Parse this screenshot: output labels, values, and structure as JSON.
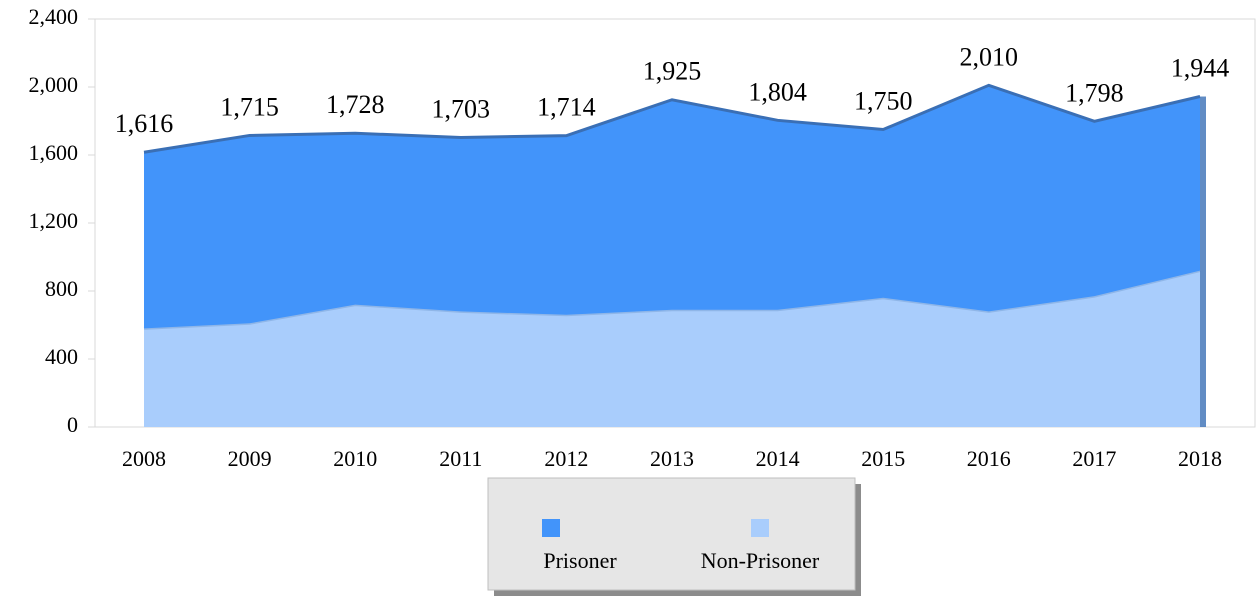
{
  "chart_data": {
    "type": "stacked_area",
    "categories": [
      "2008",
      "2009",
      "2010",
      "2011",
      "2012",
      "2013",
      "2014",
      "2015",
      "2016",
      "2017",
      "2018"
    ],
    "series": [
      {
        "name": "Non-Prisoner",
        "color": "#a9cdfc",
        "values": [
          580,
          610,
          720,
          680,
          660,
          690,
          690,
          760,
          680,
          770,
          920
        ]
      },
      {
        "name": "Prisoner",
        "color": "#4294fa",
        "values": [
          1036,
          1105,
          1008,
          1023,
          1054,
          1235,
          1114,
          990,
          1330,
          1028,
          1024
        ]
      }
    ],
    "totals": [
      1616,
      1715,
      1728,
      1703,
      1714,
      1925,
      1804,
      1750,
      2010,
      1798,
      1944
    ],
    "total_labels": [
      "1,616",
      "1,715",
      "1,728",
      "1,703",
      "1,714",
      "1,925",
      "1,804",
      "1,750",
      "2,010",
      "1,798",
      "1,944"
    ],
    "legend_order": [
      1,
      0
    ],
    "ylim": [
      0,
      2400
    ],
    "yticks": [
      0,
      400,
      800,
      {
        "value": 1200,
        "label": "1,200"
      },
      {
        "value": 1600,
        "label": "1,600"
      },
      {
        "value": 2000,
        "label": "2,000"
      },
      {
        "value": 2400,
        "label": "2,400"
      }
    ],
    "grid": false
  }
}
